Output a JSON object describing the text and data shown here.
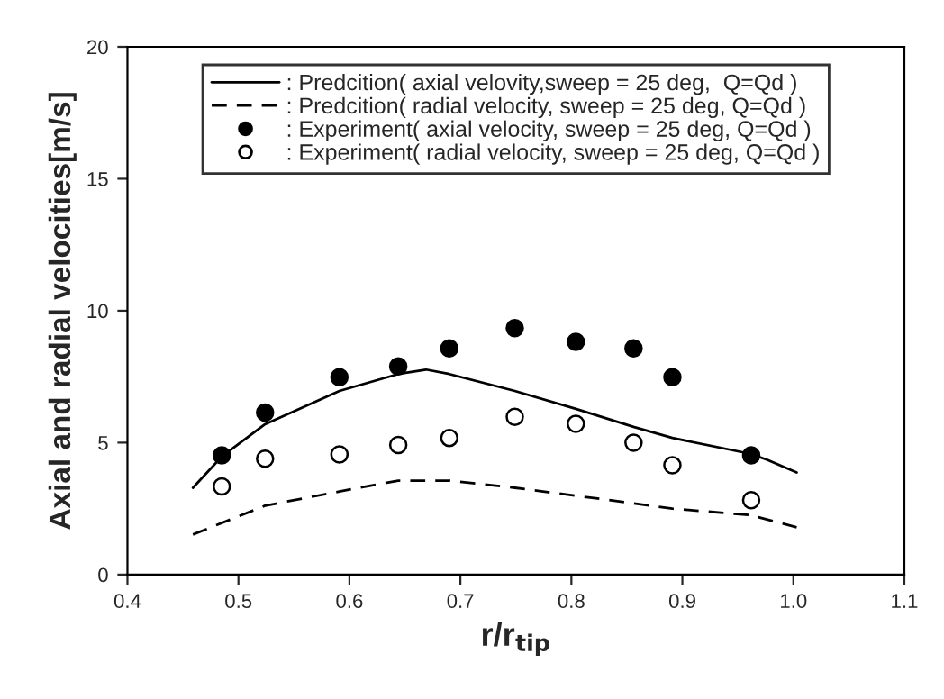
{
  "chart_data": {
    "type": "line",
    "xlabel": "r/r$_{tip}$",
    "ylabel": "Axial and radial velocities[m/s]",
    "xlim": [
      0.4,
      1.1
    ],
    "xticks": [
      {
        "value": 0.4,
        "label": "0.4"
      },
      {
        "value": 0.5,
        "label": "0.5"
      },
      {
        "value": 0.6,
        "label": "0.6"
      },
      {
        "value": 0.7,
        "label": "0.7"
      },
      {
        "value": 0.8,
        "label": "0.8"
      },
      {
        "value": 0.9,
        "label": "0.9"
      },
      {
        "value": 1.0,
        "label": "1.0"
      },
      {
        "value": 1.1,
        "label": "1.1"
      }
    ],
    "ylim": [
      0,
      20
    ],
    "yticks": [
      0,
      5,
      10,
      15,
      20
    ],
    "grid": false,
    "legend": "top",
    "series": [
      {
        "name": ": Predcition( axial velovity,sweep = 25 deg,  Q=Qd )",
        "line_style": "solid",
        "marker": "none",
        "color": "#000000",
        "x": [
          0.459,
          0.485,
          0.524,
          0.591,
          0.644,
          0.669,
          0.69,
          0.749,
          0.804,
          0.856,
          0.891,
          0.962,
          0.977,
          1.003
        ],
        "values": [
          3.29,
          4.47,
          5.7,
          6.96,
          7.6,
          7.77,
          7.6,
          6.96,
          6.28,
          5.6,
          5.18,
          4.57,
          4.34,
          3.87
        ]
      },
      {
        "name": ": Predcition( radial velocity, sweep = 25 deg, Q=Qd )",
        "line_style": "dashed",
        "marker": "none",
        "color": "#000000",
        "x": [
          0.459,
          0.524,
          0.591,
          0.644,
          0.69,
          0.749,
          0.804,
          0.856,
          0.891,
          0.962,
          1.003
        ],
        "values": [
          1.52,
          2.61,
          3.15,
          3.56,
          3.56,
          3.29,
          2.99,
          2.7,
          2.5,
          2.25,
          1.79
        ]
      },
      {
        "name": ": Experiment( axial velocity, sweep = 25 deg, Q=Qd )",
        "type": "scatter",
        "marker": "circle",
        "color": "#000000",
        "x": [
          0.485,
          0.524,
          0.591,
          0.644,
          0.69,
          0.749,
          0.804,
          0.856,
          0.891,
          0.962
        ],
        "values": [
          4.52,
          6.14,
          7.48,
          7.89,
          8.57,
          9.34,
          8.82,
          8.57,
          7.48,
          4.52
        ]
      },
      {
        "name": ": Experiment( radial velocity, sweep = 25 deg, Q=Qd )",
        "type": "scatter",
        "marker": "circle",
        "color": "#ffffff",
        "x": [
          0.485,
          0.524,
          0.591,
          0.644,
          0.69,
          0.749,
          0.804,
          0.856,
          0.891,
          0.962
        ],
        "values": [
          3.34,
          4.39,
          4.55,
          4.91,
          5.18,
          5.98,
          5.71,
          5.0,
          4.14,
          2.82
        ]
      }
    ]
  }
}
